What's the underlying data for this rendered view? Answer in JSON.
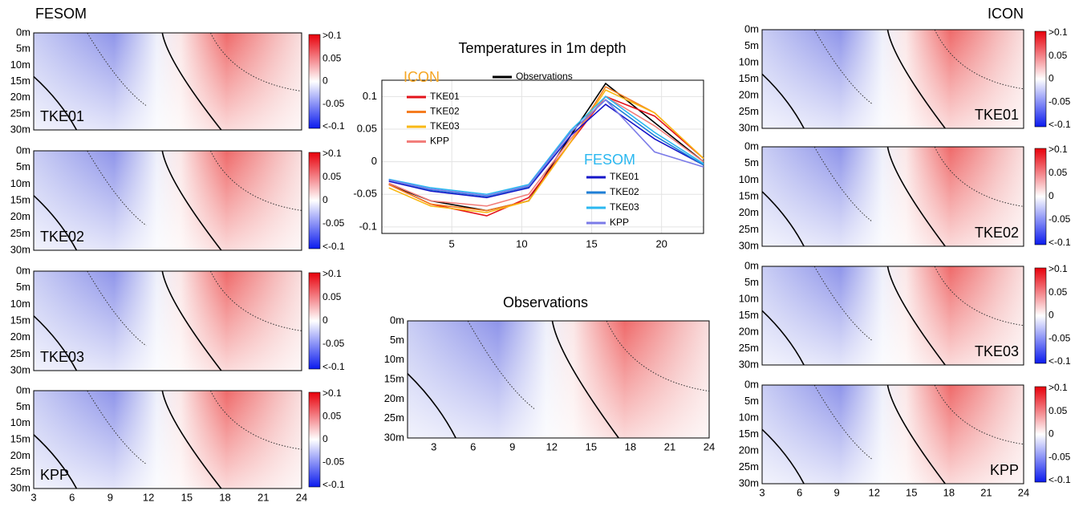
{
  "fesom_title": "FESOM",
  "icon_title": "ICON",
  "observations_title": "Observations",
  "depth_labels": [
    "0m",
    "5m",
    "10m",
    "15m",
    "20m",
    "25m",
    "30m"
  ],
  "x_labels": [
    3,
    6,
    9,
    12,
    15,
    18,
    21,
    24
  ],
  "colorbar_labels": [
    ">0.1",
    "0.05",
    "0",
    "-0.05",
    "<-0.1"
  ],
  "fesom_panels": [
    "TKE01",
    "TKE02",
    "TKE03",
    "KPP"
  ],
  "icon_panels": [
    "TKE01",
    "TKE02",
    "TKE03",
    "KPP"
  ],
  "chart_data": {
    "type": "line",
    "title": "Temperatures in 1m depth",
    "legend_titles": {
      "icon": "ICON",
      "fesom": "FESOM"
    },
    "x": [
      0.5,
      3.5,
      7.5,
      10.5,
      13.5,
      16,
      19.5,
      23
    ],
    "xlim": [
      0,
      23
    ],
    "xticks": [
      5,
      10,
      15,
      20
    ],
    "ylim": [
      -0.11,
      0.125
    ],
    "yticks": [
      0.1,
      0.05,
      0,
      -0.05,
      -0.1
    ],
    "grid": true,
    "series": [
      {
        "name": "Observations",
        "color": "#000000",
        "values": [
          -0.035,
          -0.06,
          -0.075,
          -0.06,
          0.04,
          0.12,
          0.06,
          0
        ]
      },
      {
        "name": "TKE01",
        "color": "#e3131b",
        "values": [
          -0.035,
          -0.065,
          -0.083,
          -0.055,
          0.03,
          0.1,
          0.07,
          0.005
        ]
      },
      {
        "name": "TKE02",
        "color": "#f57c20",
        "values": [
          -0.035,
          -0.065,
          -0.075,
          -0.06,
          0.03,
          0.115,
          0.075,
          0.005
        ]
      },
      {
        "name": "TKE03",
        "color": "#f9b815",
        "values": [
          -0.04,
          -0.068,
          -0.078,
          -0.06,
          0.03,
          0.11,
          0.075,
          0.005
        ]
      },
      {
        "name": "KPP",
        "color": "#f27e7b",
        "values": [
          -0.033,
          -0.06,
          -0.068,
          -0.05,
          0.035,
          0.1,
          0.055,
          0
        ]
      },
      {
        "name": "TKE01",
        "color": "#1515c8",
        "values": [
          -0.03,
          -0.045,
          -0.055,
          -0.04,
          0.04,
          0.088,
          0.035,
          -0.005
        ]
      },
      {
        "name": "TKE02",
        "color": "#1e7fd6",
        "values": [
          -0.028,
          -0.043,
          -0.053,
          -0.038,
          0.045,
          0.095,
          0.04,
          -0.005
        ]
      },
      {
        "name": "TKE03",
        "color": "#2bb8f0",
        "values": [
          -0.027,
          -0.04,
          -0.05,
          -0.035,
          0.048,
          0.1,
          0.045,
          -0.003
        ]
      },
      {
        "name": "KPP",
        "color": "#7b7be8",
        "values": [
          -0.028,
          -0.042,
          -0.052,
          -0.037,
          0.045,
          0.095,
          0.015,
          -0.008
        ]
      }
    ]
  }
}
